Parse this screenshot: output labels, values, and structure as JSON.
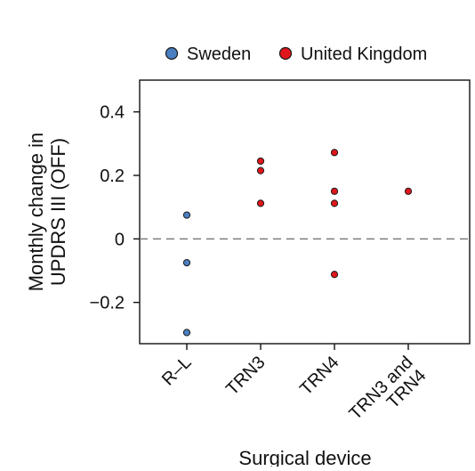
{
  "chart_data": {
    "type": "scatter",
    "categories": [
      "R–L",
      "TRN3",
      "TRN4",
      "TRN3 and TRN4"
    ],
    "xlabel": "Surgical device",
    "ylabel_lines": [
      "Monthly change in",
      "UPDRS III (OFF)"
    ],
    "ylim": [
      -0.33,
      0.5
    ],
    "yticks": [
      0.4,
      0.2,
      0,
      -0.2
    ],
    "ytick_labels": [
      "0.4",
      "0.2",
      "0",
      "−0.2"
    ],
    "reference_line": {
      "y": 0,
      "style": "dashed"
    },
    "grid": false,
    "legend": {
      "placement": "top"
    },
    "series": [
      {
        "name": "Sweden",
        "color": "#4a7fc1",
        "points": [
          {
            "category": "R–L",
            "y": 0.075
          },
          {
            "category": "R–L",
            "y": -0.075
          },
          {
            "category": "R–L",
            "y": -0.295
          }
        ]
      },
      {
        "name": "United Kingdom",
        "color": "#e0161c",
        "points": [
          {
            "category": "TRN3",
            "y": 0.245
          },
          {
            "category": "TRN3",
            "y": 0.215
          },
          {
            "category": "TRN3",
            "y": 0.112
          },
          {
            "category": "TRN4",
            "y": 0.272
          },
          {
            "category": "TRN4",
            "y": 0.15
          },
          {
            "category": "TRN4",
            "y": 0.112
          },
          {
            "category": "TRN4",
            "y": -0.112
          },
          {
            "category": "TRN3 and TRN4",
            "y": 0.15
          }
        ]
      }
    ]
  }
}
